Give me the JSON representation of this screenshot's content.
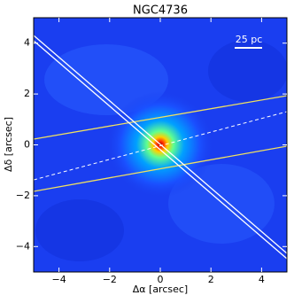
{
  "chart_data": {
    "type": "image",
    "title": "NGC4736",
    "xlabel": "Δα [arcsec]",
    "ylabel": "Δδ [arcsec]",
    "annotation": "25 pc",
    "xlim": [
      -5,
      5
    ],
    "ylim": [
      -5,
      5
    ],
    "xticks": [
      {
        "value": -4,
        "label": "−4"
      },
      {
        "value": -2,
        "label": "−2"
      },
      0,
      2,
      4
    ],
    "yticks": [
      {
        "value": -4,
        "label": "−4"
      },
      {
        "value": -2,
        "label": "−2"
      },
      0,
      2,
      4
    ]
  }
}
